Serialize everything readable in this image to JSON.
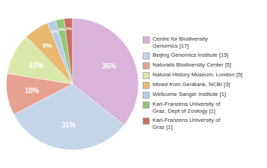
{
  "chart_data": {
    "type": "pie",
    "categories": [
      "Centre for Biodiversity\nGenomics [17]",
      "Beijing Genomics Institute [15]",
      "Naturalis Biodiversity Center [5]",
      "Natural History Museum, London [5]",
      "Mined from GenBank, NCBI [3]",
      "Wellcome Sanger Institute [1]",
      "Karl-Franzens University of\nGraz, Dept of Zoology [1]",
      "Karl-Franzens University of\nGraz [1]"
    ],
    "values": [
      35,
      31,
      10,
      10,
      6,
      2,
      2,
      2
    ],
    "value_labels": [
      "35%",
      "31%",
      "10%",
      "10%",
      "6%",
      "2%",
      "2%",
      "2%"
    ],
    "colors": [
      "#d9b3d9",
      "#c5d5e8",
      "#e8a090",
      "#d9e8a8",
      "#e8b870",
      "#b8cce8",
      "#90c878",
      "#c87060"
    ],
    "data_labels": true,
    "legend": "right"
  }
}
